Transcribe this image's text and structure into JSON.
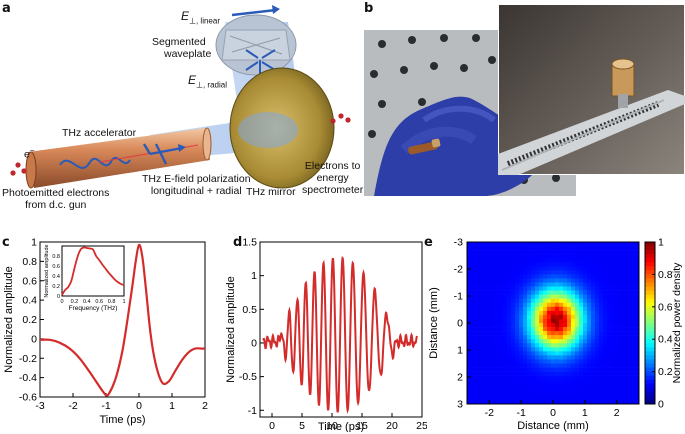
{
  "panel_labels": [
    "a",
    "b",
    "c",
    "d",
    "e"
  ],
  "panel_a": {
    "e_linear": "E",
    "e_linear_sub": "⊥, linear",
    "segmented_waveplate": [
      "Segmented",
      "waveplate"
    ],
    "e_radial": "E",
    "e_radial_sub": "⊥, radial",
    "thz_accelerator": "THz accelerator",
    "electron": "e",
    "electron_sup": "−",
    "photoemitted": [
      "Photoemitted electrons",
      "from d.c. gun"
    ],
    "polarization": [
      "THz E-field polarization",
      "longitudinal + radial"
    ],
    "thz_mirror": "THz mirror",
    "electrons_to": [
      "Electrons to",
      "energy",
      "spectrometer"
    ]
  },
  "chart_data": [
    {
      "panel": "c",
      "type": "line",
      "xlabel": "Time (ps)",
      "ylabel": "Normalized amplitude",
      "xlim": [
        -3,
        2
      ],
      "ylim": [
        -0.6,
        1
      ],
      "xticks": [
        "-3",
        "-2",
        "-1",
        "0",
        "1",
        "2"
      ],
      "yticks": [
        "1",
        "0.8",
        "0.6",
        "0.4",
        "0.2",
        "0",
        "-0.2",
        "-0.4",
        "-0.6"
      ],
      "color": "#d42b2b",
      "x": [
        -3,
        -2.7,
        -2.4,
        -2.1,
        -1.8,
        -1.5,
        -1.3,
        -1.1,
        -1.0,
        -0.9,
        -0.7,
        -0.5,
        -0.35,
        -0.2,
        -0.1,
        0,
        0.1,
        0.2,
        0.35,
        0.5,
        0.7,
        0.9,
        1.1,
        1.3,
        1.5,
        1.7,
        1.9,
        2.0
      ],
      "y": [
        -0.01,
        -0.01,
        -0.04,
        -0.1,
        -0.2,
        -0.34,
        -0.44,
        -0.54,
        -0.58,
        -0.56,
        -0.4,
        -0.12,
        0.2,
        0.55,
        0.8,
        0.97,
        0.85,
        0.55,
        0.05,
        -0.25,
        -0.45,
        -0.44,
        -0.33,
        -0.22,
        -0.14,
        -0.1,
        -0.1,
        -0.1
      ],
      "inset": {
        "type": "line",
        "xlabel": "Frequency (THz)",
        "ylabel": "Normalized amplitude",
        "xlim": [
          0,
          1
        ],
        "ylim": [
          0,
          1
        ],
        "xticks": [
          "0",
          "0.2",
          "0.4",
          "0.6",
          "0.8",
          "1"
        ],
        "yticks": [
          "0",
          "0.2",
          "0.4",
          "0.6",
          "0.8"
        ],
        "x": [
          0,
          0.05,
          0.1,
          0.15,
          0.2,
          0.25,
          0.3,
          0.35,
          0.4,
          0.45,
          0.5,
          0.55,
          0.6,
          0.65,
          0.7,
          0.75,
          0.8,
          0.85,
          0.9,
          0.95,
          1.0
        ],
        "y": [
          0.02,
          0.12,
          0.18,
          0.3,
          0.55,
          0.78,
          0.93,
          0.97,
          0.96,
          0.95,
          0.93,
          0.8,
          0.72,
          0.63,
          0.55,
          0.47,
          0.4,
          0.33,
          0.28,
          0.24,
          0.22
        ]
      }
    },
    {
      "panel": "d",
      "type": "line",
      "xlabel": "Time (ps)",
      "ylabel": "Normalized amplitude",
      "xlim": [
        -2,
        25
      ],
      "ylim": [
        -1.1,
        1.5
      ],
      "xticks": [
        "0",
        "5",
        "10",
        "15",
        "20",
        "25"
      ],
      "yticks": [
        "1.5",
        "1",
        "0.5",
        "0",
        "-0.5",
        "-1"
      ],
      "color": "#d42b2b"
    },
    {
      "panel": "e",
      "type": "heatmap",
      "xlabel": "Distance (mm)",
      "ylabel": "Distance (mm)",
      "colorbar_label": "Normalized power density",
      "xlim": [
        -2.7,
        2.7
      ],
      "ylim": [
        -3,
        3
      ],
      "xticks": [
        "-2",
        "-1",
        "0",
        "1",
        "2"
      ],
      "yticks": [
        "-3",
        "-2",
        "-1",
        "0",
        "1",
        "2",
        "3"
      ],
      "colorbar_ticks": [
        "1",
        "0.8",
        "0.6",
        "0.4",
        "0.2",
        "0"
      ],
      "spot_center_mm": [
        0.1,
        -0.1
      ],
      "spot_sigma_mm": [
        0.55,
        0.75
      ]
    }
  ]
}
